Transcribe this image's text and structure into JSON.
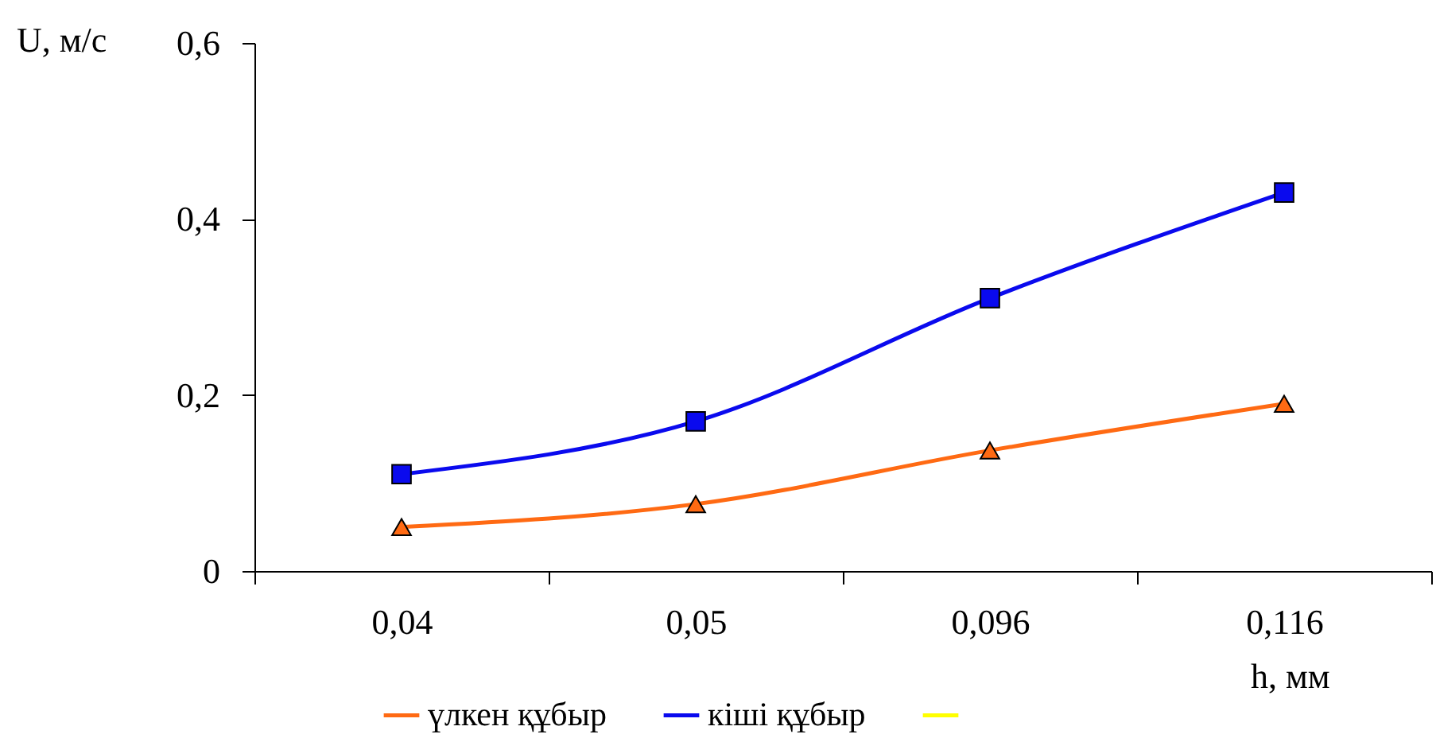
{
  "chart_data": {
    "type": "line",
    "xlabel": "h, мм",
    "ylabel": "U, м/с",
    "categories": [
      "0,04",
      "0,05",
      "0,096",
      "0,116"
    ],
    "series": [
      {
        "name": "үлкен құбыр",
        "color": "#ff6a13",
        "marker": "triangle",
        "values": [
          0.05,
          0.076,
          0.137,
          0.19
        ]
      },
      {
        "name": "кіші құбыр",
        "color": "#0a0aee",
        "marker": "square",
        "values": [
          0.11,
          0.17,
          0.31,
          0.43
        ]
      },
      {
        "color": "#ffff00",
        "marker": "none",
        "values": [
          null,
          null,
          null,
          null
        ]
      }
    ],
    "ylim": [
      0,
      0.6
    ],
    "yticks": [
      0,
      {
        "value": 0.2,
        "label": "0,2"
      },
      {
        "value": 0.4,
        "label": "0,4"
      },
      {
        "value": 0.6,
        "label": "0,6"
      }
    ],
    "grid": false,
    "legend": "bottom"
  }
}
